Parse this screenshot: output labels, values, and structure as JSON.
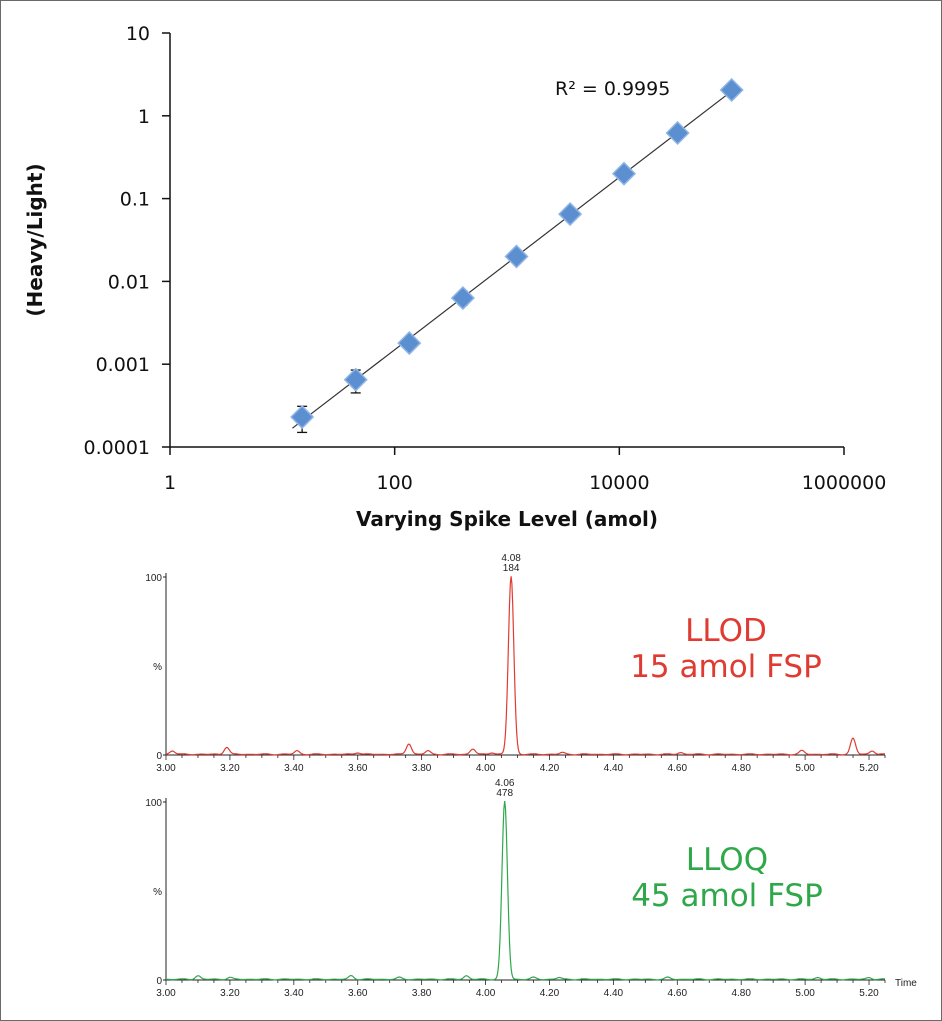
{
  "colors": {
    "marker": "#5b8fd0",
    "marker_edge": "#8fb5e6",
    "fit_line": "#333333",
    "llod": "#e03b32",
    "lloq": "#2fa84a",
    "axis": "#111111"
  },
  "chart_data": [
    {
      "type": "scatter",
      "title": "",
      "xlabel": "Varying Spike Level (amol)",
      "ylabel": "(Heavy/Light)",
      "x_scale": "log",
      "y_scale": "log",
      "xlim": [
        1,
        1000000
      ],
      "ylim": [
        0.0001,
        10
      ],
      "x_ticks": [
        "1",
        "100",
        "10000",
        "1000000"
      ],
      "y_ticks": [
        "10",
        "1",
        "0.1",
        "0.01",
        "0.001",
        "0.0001"
      ],
      "grid": false,
      "annotation": "R² = 0.9995",
      "trendline": "power fit",
      "points": [
        {
          "x": 15,
          "y": 0.00023,
          "err": 8e-05
        },
        {
          "x": 45,
          "y": 0.00065,
          "err": 0.0002
        },
        {
          "x": 135,
          "y": 0.0018,
          "err": 0.0002
        },
        {
          "x": 405,
          "y": 0.0063,
          "err": 0.0011
        },
        {
          "x": 1215,
          "y": 0.02,
          "err": 0.002
        },
        {
          "x": 3645,
          "y": 0.065,
          "err": 0.005
        },
        {
          "x": 11000,
          "y": 0.2,
          "err": 0.015
        },
        {
          "x": 33000,
          "y": 0.62,
          "err": 0.04
        },
        {
          "x": 100000,
          "y": 2.05,
          "err": 0.1
        }
      ]
    },
    {
      "type": "line",
      "label_lines": [
        "LLOD",
        "15 amol FSP"
      ],
      "peak_label": [
        "4.08",
        "184"
      ],
      "peak_x": 4.08,
      "xlim": [
        3.0,
        5.25
      ],
      "ylim": [
        0,
        100
      ],
      "x_ticks": [
        "3.00",
        "3.20",
        "3.40",
        "3.60",
        "3.80",
        "4.00",
        "4.20",
        "4.40",
        "4.60",
        "4.80",
        "5.00",
        "5.20"
      ],
      "y_ticks": [
        "100",
        "%",
        "0"
      ],
      "noise_peaks": [
        {
          "x": 3.02,
          "h": 2
        },
        {
          "x": 3.19,
          "h": 4
        },
        {
          "x": 3.41,
          "h": 2
        },
        {
          "x": 3.6,
          "h": 1
        },
        {
          "x": 3.76,
          "h": 6
        },
        {
          "x": 3.82,
          "h": 2
        },
        {
          "x": 3.96,
          "h": 3
        },
        {
          "x": 4.02,
          "h": 1
        },
        {
          "x": 4.24,
          "h": 1
        },
        {
          "x": 4.61,
          "h": 1
        },
        {
          "x": 4.99,
          "h": 2
        },
        {
          "x": 5.15,
          "h": 9
        },
        {
          "x": 5.21,
          "h": 2
        }
      ]
    },
    {
      "type": "line",
      "label_lines": [
        "LLOQ",
        "45 amol FSP"
      ],
      "peak_label": [
        "4.06",
        "478"
      ],
      "peak_x": 4.06,
      "xlim": [
        3.0,
        5.25
      ],
      "ylim": [
        0,
        100
      ],
      "x_ticks": [
        "3.00",
        "3.20",
        "3.40",
        "3.60",
        "3.80",
        "4.00",
        "4.20",
        "4.40",
        "4.60",
        "4.80",
        "5.00",
        "5.20"
      ],
      "y_ticks": [
        "100",
        "%",
        "0"
      ],
      "x_unit": "Time",
      "noise_peaks": [
        {
          "x": 3.1,
          "h": 2
        },
        {
          "x": 3.2,
          "h": 1
        },
        {
          "x": 3.58,
          "h": 2
        },
        {
          "x": 3.73,
          "h": 1
        },
        {
          "x": 3.94,
          "h": 2
        },
        {
          "x": 4.15,
          "h": 1
        },
        {
          "x": 4.23,
          "h": 1
        },
        {
          "x": 4.57,
          "h": 1
        },
        {
          "x": 5.04,
          "h": 1
        },
        {
          "x": 5.2,
          "h": 1
        }
      ]
    }
  ]
}
